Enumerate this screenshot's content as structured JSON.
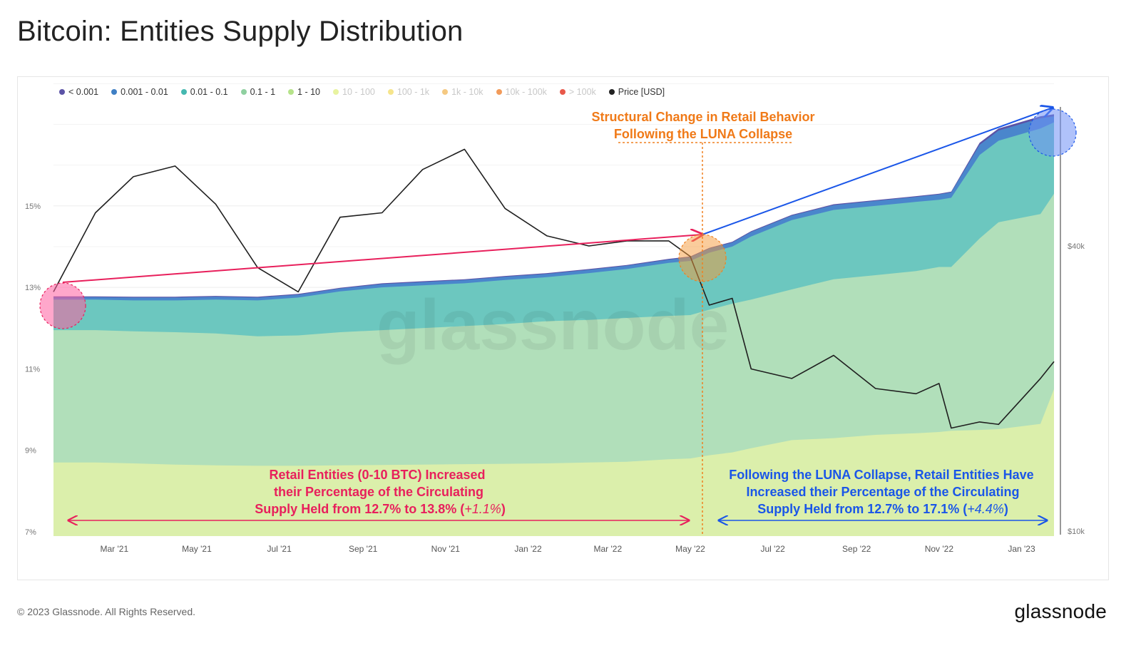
{
  "title": "Bitcoin: Entities Supply Distribution",
  "footer": "© 2023 Glassnode. All Rights Reserved.",
  "brand": "glassnode",
  "watermark": "glassnode",
  "legend": [
    {
      "label": "< 0.001",
      "color": "#5b53a6",
      "active": true
    },
    {
      "label": "0.001 - 0.01",
      "color": "#3f7fc4",
      "active": true
    },
    {
      "label": "0.01 - 0.1",
      "color": "#45b8b0",
      "active": true
    },
    {
      "label": "0.1 - 1",
      "color": "#8fd0a0",
      "active": true
    },
    {
      "label": "1 - 10",
      "color": "#b6e38a",
      "active": true
    },
    {
      "label": "10 - 100",
      "color": "#e8f3a0",
      "active": false
    },
    {
      "label": "100 - 1k",
      "color": "#f6e58c",
      "active": false
    },
    {
      "label": "1k - 10k",
      "color": "#f5c982",
      "active": false
    },
    {
      "label": "10k - 100k",
      "color": "#f29b5a",
      "active": false
    },
    {
      "label": "> 100k",
      "color": "#e8584a",
      "active": false
    },
    {
      "label": "Price [USD]",
      "color": "#222222",
      "active": true
    }
  ],
  "annotations": {
    "structural_line1": "Structural Change in Retail Behavior",
    "structural_line2": "Following the LUNA Collapse",
    "retail_left_line1": "Retail Entities (0-10 BTC) Increased",
    "retail_left_line2": "their Percentage of the Circulating",
    "retail_left_line3_prefix": "Supply Held from 12.7% to 13.8% (",
    "retail_left_line3_italic": "+1.1%",
    "retail_left_line3_suffix": ")",
    "retail_right_line1": "Following the LUNA Collapse, Retail Entities Have",
    "retail_right_line2": "Increased their Percentage of the Circulating",
    "retail_right_line3_prefix": "Supply Held from  12.7% to 17.1% (",
    "retail_right_line3_italic": "+4.4%",
    "retail_right_line3_suffix": ")"
  },
  "chart_data": {
    "type": "area",
    "title": "Bitcoin: Entities Supply Distribution",
    "x_tick_labels": [
      "Mar '21",
      "May '21",
      "Jul '21",
      "Sep '21",
      "Nov '21",
      "Jan '22",
      "Mar '22",
      "May '22",
      "Jul '22",
      "Sep '22",
      "Nov '22",
      "Jan '23"
    ],
    "y_left": {
      "labels": [
        "7%",
        "9%",
        "11%",
        "13%",
        "15%"
      ],
      "values": [
        7,
        9,
        11,
        13,
        15
      ],
      "range": [
        7,
        18.3
      ]
    },
    "y_right": {
      "labels": [
        "$10k",
        "$40k"
      ],
      "scale": "log",
      "values": [
        10000,
        40000
      ]
    },
    "x": [
      "2021-01-15",
      "2021-02-15",
      "2021-03-15",
      "2021-04-15",
      "2021-05-15",
      "2021-06-15",
      "2021-07-15",
      "2021-08-15",
      "2021-09-15",
      "2021-10-15",
      "2021-11-15",
      "2021-12-15",
      "2022-01-15",
      "2022-02-15",
      "2022-03-15",
      "2022-04-15",
      "2022-05-01",
      "2022-05-15",
      "2022-06-01",
      "2022-06-15",
      "2022-07-15",
      "2022-08-15",
      "2022-09-15",
      "2022-10-15",
      "2022-11-01",
      "2022-11-10",
      "2022-12-01",
      "2022-12-15",
      "2023-01-15",
      "2023-01-25"
    ],
    "series": [
      {
        "name": "1 - 10",
        "values": [
          8.7,
          8.7,
          8.68,
          8.65,
          8.63,
          8.62,
          8.62,
          8.63,
          8.64,
          8.65,
          8.66,
          8.67,
          8.68,
          8.7,
          8.72,
          8.78,
          8.8,
          8.88,
          8.95,
          9.05,
          9.25,
          9.3,
          9.38,
          9.42,
          9.45,
          9.48,
          9.5,
          9.52,
          9.65,
          10.5
        ]
      },
      {
        "name": "0.1 - 1",
        "values": [
          11.95,
          11.95,
          11.92,
          11.9,
          11.87,
          11.8,
          11.82,
          11.9,
          11.95,
          12.0,
          12.05,
          12.1,
          12.17,
          12.2,
          12.25,
          12.3,
          12.32,
          12.45,
          12.6,
          12.7,
          12.95,
          13.2,
          13.3,
          13.4,
          13.5,
          13.5,
          14.2,
          14.6,
          14.8,
          15.3
        ]
      },
      {
        "name": "0.01 - 0.1",
        "values": [
          12.7,
          12.7,
          12.68,
          12.68,
          12.7,
          12.68,
          12.75,
          12.9,
          13.0,
          13.05,
          13.1,
          13.18,
          13.25,
          13.35,
          13.45,
          13.6,
          13.65,
          13.85,
          14.0,
          14.25,
          14.65,
          14.9,
          15.0,
          15.1,
          15.15,
          15.2,
          16.25,
          16.6,
          16.9,
          17.05
        ]
      },
      {
        "name": "0.001 - 0.01",
        "values": [
          12.76,
          12.76,
          12.75,
          12.75,
          12.77,
          12.75,
          12.82,
          12.97,
          13.08,
          13.13,
          13.18,
          13.26,
          13.33,
          13.43,
          13.53,
          13.68,
          13.74,
          13.95,
          14.1,
          14.36,
          14.76,
          15.02,
          15.12,
          15.22,
          15.28,
          15.33,
          16.5,
          16.85,
          17.15,
          17.2
        ]
      },
      {
        "name": "< 0.001",
        "values": [
          12.78,
          12.78,
          12.77,
          12.77,
          12.79,
          12.77,
          12.84,
          12.99,
          13.1,
          13.15,
          13.2,
          13.28,
          13.35,
          13.45,
          13.55,
          13.7,
          13.76,
          13.97,
          14.12,
          14.38,
          14.78,
          15.04,
          15.14,
          15.24,
          15.3,
          15.35,
          16.55,
          16.9,
          17.2,
          17.25
        ]
      },
      {
        "name": "Price [USD]",
        "axis": "right",
        "values": [
          32000,
          47000,
          56000,
          59000,
          49000,
          36000,
          32000,
          46000,
          47000,
          58000,
          64000,
          48000,
          42000,
          40000,
          41000,
          41000,
          38000,
          30000,
          31000,
          22000,
          21000,
          23500,
          20000,
          19500,
          20500,
          16500,
          17000,
          16800,
          21000,
          22800
        ]
      }
    ],
    "annotations": [
      "Structural Change in Retail Behavior Following the LUNA Collapse",
      "Retail Entities (0-10 BTC) Increased their Percentage of the Circulating Supply Held from 12.7% to 13.8% (+1.1%)",
      "Following the LUNA Collapse, Retail Entities Have Increased their Percentage of the Circulating Supply Held from  12.7% to 17.1% (+4.4%)"
    ],
    "grid": true,
    "legend": "top-left"
  }
}
